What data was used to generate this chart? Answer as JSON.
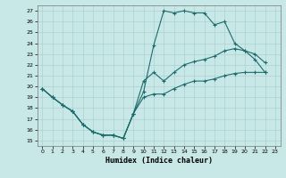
{
  "background_color": "#c8e8e8",
  "grid_color": "#afd0d0",
  "line_color": "#1e6b6b",
  "xlabel": "Humidex (Indice chaleur)",
  "xlim": [
    -0.5,
    23.5
  ],
  "ylim": [
    14.5,
    27.5
  ],
  "xticks": [
    0,
    1,
    2,
    3,
    4,
    5,
    6,
    7,
    8,
    9,
    10,
    11,
    12,
    13,
    14,
    15,
    16,
    17,
    18,
    19,
    20,
    21,
    22,
    23
  ],
  "yticks": [
    15,
    16,
    17,
    18,
    19,
    20,
    21,
    22,
    23,
    24,
    25,
    26,
    27
  ],
  "series": [
    {
      "x": [
        0,
        1,
        2,
        3,
        4,
        5,
        6,
        7,
        8,
        9,
        10,
        11,
        12,
        13,
        14,
        15,
        16,
        17,
        18,
        19,
        20,
        21,
        22
      ],
      "y": [
        19.8,
        19.0,
        18.3,
        17.7,
        16.5,
        15.8,
        15.5,
        15.5,
        15.2,
        17.5,
        19.5,
        23.8,
        27.0,
        26.8,
        27.0,
        26.8,
        26.8,
        25.7,
        26.0,
        24.0,
        23.3,
        23.0,
        22.2
      ]
    },
    {
      "x": [
        0,
        1,
        2,
        3,
        4,
        5,
        6,
        7,
        8,
        9,
        10,
        11,
        12,
        13,
        14,
        15,
        16,
        17,
        18,
        19,
        20,
        21,
        22
      ],
      "y": [
        19.8,
        19.0,
        18.3,
        17.7,
        16.5,
        15.8,
        15.5,
        15.5,
        15.2,
        17.5,
        20.5,
        21.3,
        20.5,
        21.3,
        22.0,
        22.3,
        22.5,
        22.8,
        23.3,
        23.5,
        23.3,
        22.5,
        21.3
      ]
    },
    {
      "x": [
        0,
        1,
        2,
        3,
        4,
        5,
        6,
        7,
        8,
        9,
        10,
        11,
        12,
        13,
        14,
        15,
        16,
        17,
        18,
        19,
        20,
        21,
        22
      ],
      "y": [
        19.8,
        19.0,
        18.3,
        17.7,
        16.5,
        15.8,
        15.5,
        15.5,
        15.2,
        17.5,
        19.0,
        19.3,
        19.3,
        19.8,
        20.2,
        20.5,
        20.5,
        20.7,
        21.0,
        21.2,
        21.3,
        21.3,
        21.3
      ]
    }
  ]
}
